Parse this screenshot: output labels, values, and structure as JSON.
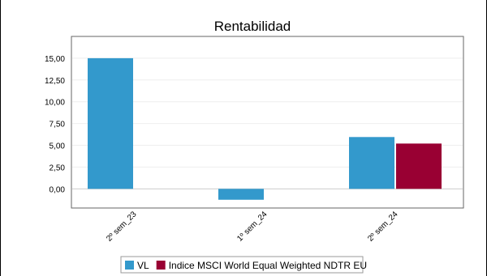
{
  "chart_data": {
    "type": "bar",
    "title": "Rentabilidad",
    "categories": [
      "2º sem_23",
      "1º sem_24",
      "2º sem_24"
    ],
    "series": [
      {
        "name": "VL",
        "color": "#3399cc",
        "values": [
          15.0,
          -1.25,
          5.95
        ]
      },
      {
        "name": "Indice MSCI World Equal Weighted NDTR EU",
        "color": "#990033",
        "values": [
          null,
          null,
          5.2
        ]
      }
    ],
    "y_ticks": [
      "15,00",
      "12,50",
      "10,00",
      "7,50",
      "5,00",
      "2,50",
      "0,00"
    ],
    "y_tick_values": [
      15,
      12.5,
      10,
      7.5,
      5,
      2.5,
      0
    ],
    "ylim": [
      -2.2,
      17.5
    ],
    "grid": true,
    "legend_position": "bottom"
  }
}
